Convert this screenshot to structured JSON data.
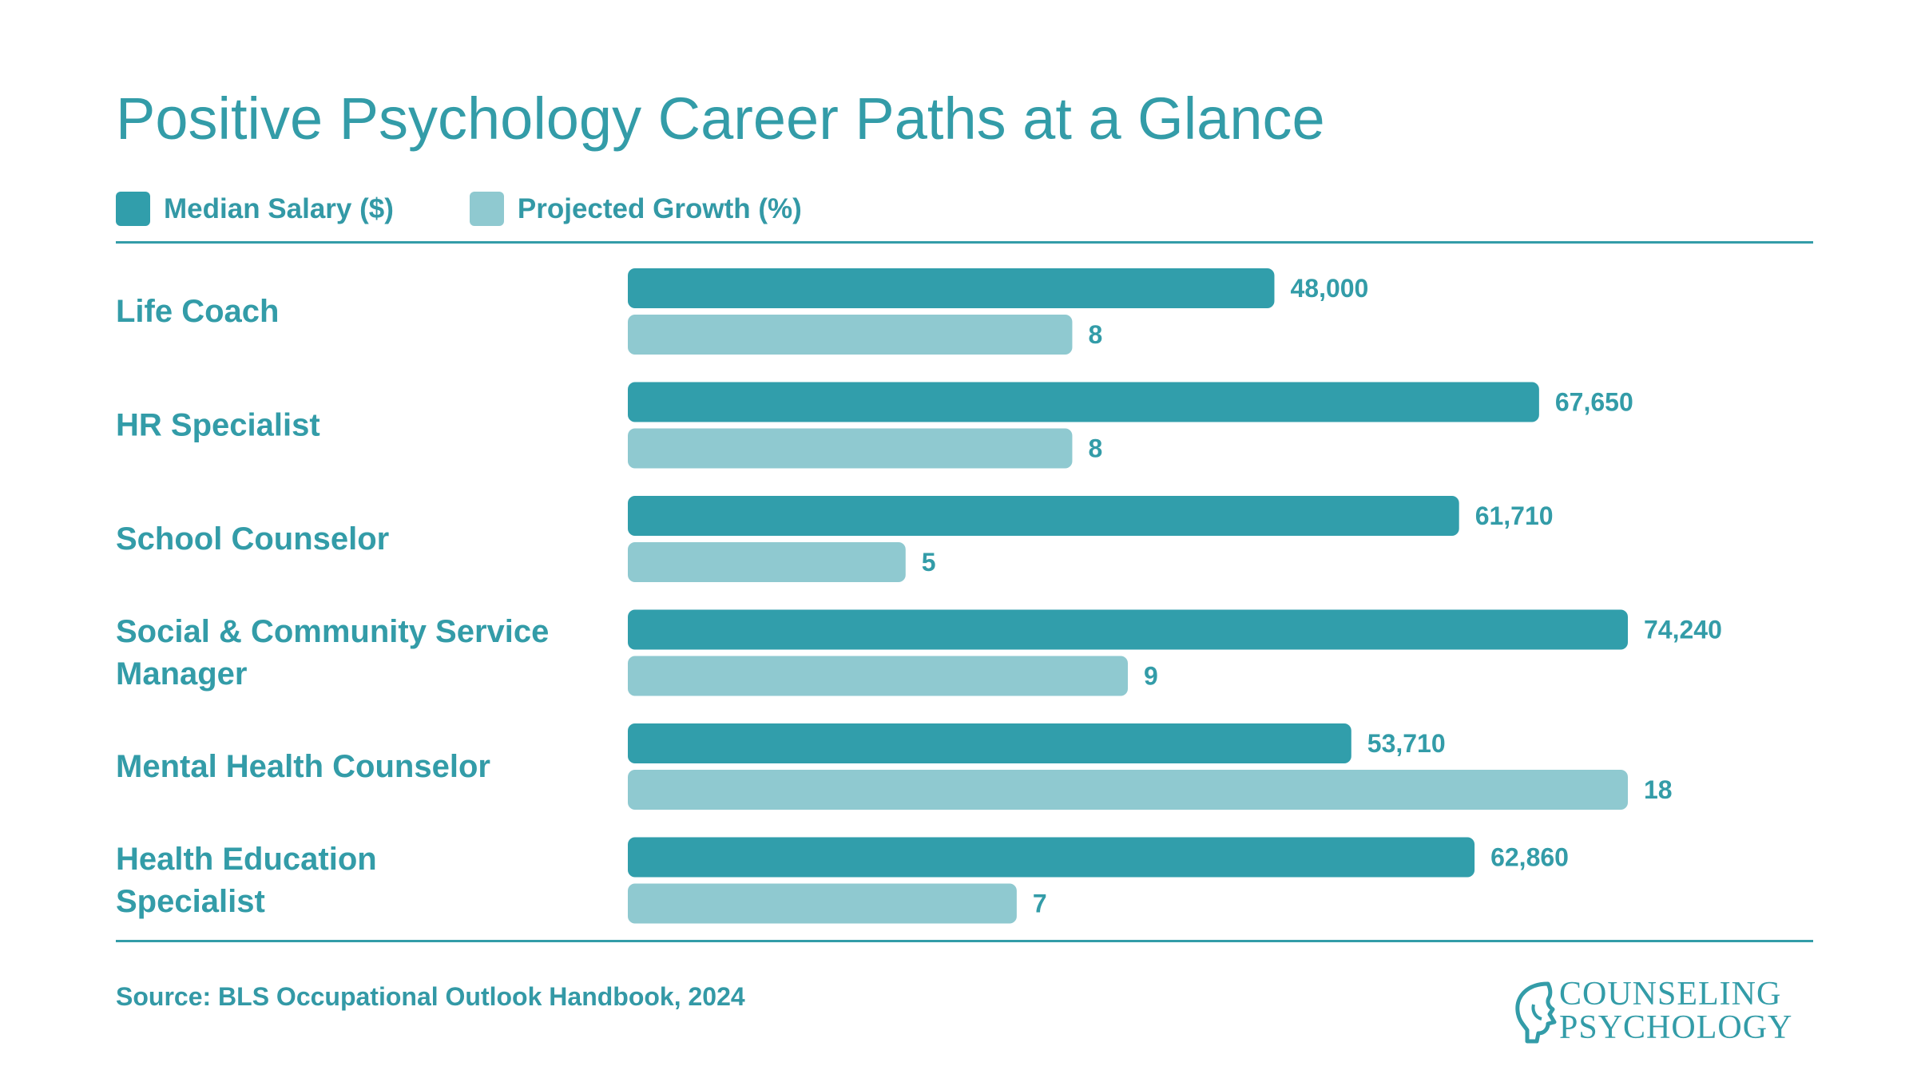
{
  "title": "Positive Psychology Career Paths at a Glance",
  "legend": [
    {
      "label": "Median Salary ($)",
      "color": "#319eab"
    },
    {
      "label": "Projected Growth (%)",
      "color": "#8fc9d0"
    }
  ],
  "source": "Source: BLS Occupational Outlook Handbook, 2024",
  "logo": {
    "line1": "COUNSELING",
    "line2": "PSYCHOLOGY"
  },
  "colors": {
    "accent": "#339ca8",
    "salary_bar": "#319eab",
    "growth_bar": "#8fc9d0"
  },
  "chart_data": {
    "type": "bar",
    "orientation": "horizontal",
    "title": "Positive Psychology Career Paths at a Glance",
    "categories": [
      [
        "Life Coach"
      ],
      [
        "HR Specialist"
      ],
      [
        "School Counselor"
      ],
      [
        "Social & Community Service",
        "Manager"
      ],
      [
        "Mental Health Counselor"
      ],
      [
        "Health Education",
        "Specialist"
      ]
    ],
    "series": [
      {
        "name": "Median Salary ($)",
        "values": [
          48000,
          67650,
          61710,
          74240,
          53710,
          62860
        ],
        "labels": [
          "48,000",
          "67,650",
          "61,710",
          "74,240",
          "53,710",
          "62,860"
        ]
      },
      {
        "name": "Projected Growth (%)",
        "values": [
          8,
          8,
          5,
          9,
          18,
          7
        ],
        "labels": [
          "8",
          "8",
          "5",
          "9",
          "18",
          "7"
        ]
      }
    ],
    "legend": "top-left",
    "grid": false
  }
}
